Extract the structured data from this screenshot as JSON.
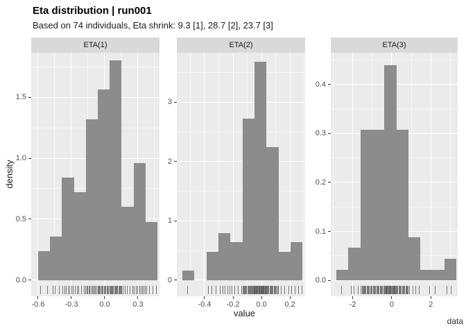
{
  "colors": {
    "bar": "#8c8c8c",
    "panel_bg": "#ebebeb",
    "strip_bg": "#d9d9d9",
    "grid_major": "#ffffff",
    "grid_minor": "rgba(255,255,255,0.55)",
    "axis_text": "#4d4d4d",
    "tick_mark": "#333333",
    "rug": "rgba(26,26,26,0.55)"
  },
  "chart_data": {
    "type": "histogram-facets",
    "title": "Eta distribution | run001",
    "subtitle": "Based on 74 individuals, Eta shrink: 9.3 [1], 28.7 [2], 23.7 [3]",
    "n_individuals": 74,
    "eta_shrink": {
      "eta1": 9.3,
      "eta2": 28.7,
      "eta3": 23.7
    },
    "xlabel": "value",
    "ylabel": "density",
    "caption": "data",
    "grid": true,
    "facets": [
      {
        "label": "ETA(1)",
        "bin_start": -0.6,
        "bin_width": 0.1075,
        "counts": [
          2,
          3,
          7,
          6,
          11,
          13,
          15,
          5,
          8,
          4
        ],
        "densities": [
          0.24,
          0.36,
          0.84,
          0.72,
          1.32,
          1.56,
          1.8,
          0.6,
          0.96,
          0.48
        ],
        "xlim": [
          -0.6625,
          0.494
        ],
        "ylim": [
          -0.131,
          1.864
        ],
        "x_ticks": [
          {
            "v": -0.6,
            "label": "-0.6"
          },
          {
            "v": -0.3,
            "label": "-0.3"
          },
          {
            "v": 0.0,
            "label": "0.0"
          },
          {
            "v": 0.3,
            "label": "0.3"
          }
        ],
        "y_ticks": [
          {
            "v": 0.0,
            "label": "0.0"
          },
          {
            "v": 0.5,
            "label": "0.5"
          },
          {
            "v": 1.0,
            "label": "1.0"
          },
          {
            "v": 1.5,
            "label": "1.5"
          }
        ],
        "rug": [
          -0.58,
          -0.52,
          -0.47,
          -0.45,
          -0.41,
          -0.38,
          -0.365,
          -0.35,
          -0.33,
          -0.32,
          -0.3,
          -0.285,
          -0.27,
          -0.25,
          -0.235,
          -0.21,
          -0.19,
          -0.175,
          -0.165,
          -0.155,
          -0.145,
          -0.135,
          -0.125,
          -0.115,
          -0.105,
          -0.095,
          -0.085,
          -0.075,
          -0.065,
          -0.058,
          -0.05,
          -0.042,
          -0.033,
          -0.025,
          -0.017,
          -0.008,
          0.0,
          0.008,
          0.017,
          0.025,
          0.033,
          0.042,
          0.048,
          0.055,
          0.063,
          0.07,
          0.078,
          0.085,
          0.093,
          0.1,
          0.108,
          0.115,
          0.123,
          0.13,
          0.138,
          0.145,
          0.15,
          0.16,
          0.18,
          0.2,
          0.225,
          0.25,
          0.265,
          0.28,
          0.295,
          0.31,
          0.325,
          0.34,
          0.35,
          0.36,
          0.375,
          0.4,
          0.43,
          0.46
        ]
      },
      {
        "label": "ETA(2)",
        "bin_start": -0.556,
        "bin_width": 0.0845,
        "counts": [
          1,
          0,
          3,
          5,
          4,
          17,
          23,
          14,
          3,
          4
        ],
        "densities": [
          0.16,
          0,
          0.48,
          0.8,
          0.64,
          2.72,
          3.68,
          2.24,
          0.48,
          0.64
        ],
        "xlim": [
          -0.595,
          0.307
        ],
        "ylim": [
          -0.269,
          3.832
        ],
        "x_ticks": [
          {
            "v": -0.4,
            "label": "-0.4"
          },
          {
            "v": -0.2,
            "label": "-0.2"
          },
          {
            "v": 0.0,
            "label": "0.0"
          },
          {
            "v": 0.2,
            "label": "0.2"
          }
        ],
        "y_ticks": [
          {
            "v": 0,
            "label": "0"
          },
          {
            "v": 1,
            "label": "1"
          },
          {
            "v": 2,
            "label": "2"
          },
          {
            "v": 3,
            "label": "3"
          }
        ],
        "rug": [
          -0.52,
          -0.375,
          -0.35,
          -0.32,
          -0.295,
          -0.275,
          -0.26,
          -0.24,
          -0.225,
          -0.21,
          -0.19,
          -0.165,
          -0.14,
          -0.13,
          -0.125,
          -0.12,
          -0.115,
          -0.11,
          -0.105,
          -0.1,
          -0.095,
          -0.09,
          -0.085,
          -0.08,
          -0.075,
          -0.07,
          -0.065,
          -0.06,
          -0.055,
          -0.05,
          -0.047,
          -0.043,
          -0.04,
          -0.036,
          -0.032,
          -0.028,
          -0.025,
          -0.021,
          -0.017,
          -0.013,
          -0.01,
          -0.006,
          -0.002,
          0.001,
          0.005,
          0.009,
          0.012,
          0.016,
          0.02,
          0.024,
          0.027,
          0.031,
          0.034,
          0.038,
          0.044,
          0.05,
          0.056,
          0.062,
          0.068,
          0.074,
          0.08,
          0.086,
          0.092,
          0.098,
          0.104,
          0.11,
          0.116,
          0.135,
          0.16,
          0.19,
          0.21,
          0.235,
          0.26,
          0.285
        ]
      },
      {
        "label": "ETA(3)",
        "bin_start": -2.84,
        "bin_width": 0.615,
        "counts": [
          1,
          3,
          14,
          14,
          20,
          14,
          4,
          1,
          1,
          2
        ],
        "densities": [
          0.022,
          0.066,
          0.308,
          0.308,
          0.44,
          0.308,
          0.088,
          0.022,
          0.022,
          0.044
        ],
        "xlim": [
          -3.12,
          3.37
        ],
        "ylim": [
          -0.0326,
          0.4652
        ],
        "x_ticks": [
          {
            "v": -2,
            "label": "-2"
          },
          {
            "v": 0,
            "label": "0"
          },
          {
            "v": 2,
            "label": "2"
          }
        ],
        "y_ticks": [
          {
            "v": 0.0,
            "label": "0.0"
          },
          {
            "v": 0.1,
            "label": "0.1"
          },
          {
            "v": 0.2,
            "label": "0.2"
          },
          {
            "v": 0.3,
            "label": "0.3"
          },
          {
            "v": 0.4,
            "label": "0.4"
          }
        ],
        "rug": [
          -2.6,
          -2.1,
          -1.95,
          -1.75,
          -1.58,
          -1.53,
          -1.49,
          -1.45,
          -1.41,
          -1.37,
          -1.33,
          -1.28,
          -1.24,
          -1.2,
          -1.16,
          -1.11,
          -1.07,
          -1.02,
          -0.97,
          -0.92,
          -0.88,
          -0.84,
          -0.79,
          -0.75,
          -0.7,
          -0.66,
          -0.61,
          -0.57,
          -0.52,
          -0.48,
          -0.44,
          -0.4,
          -0.36,
          -0.33,
          -0.3,
          -0.27,
          -0.24,
          -0.21,
          -0.18,
          -0.15,
          -0.12,
          -0.09,
          -0.06,
          -0.03,
          0.0,
          0.03,
          0.06,
          0.09,
          0.12,
          0.15,
          0.19,
          0.22,
          0.25,
          0.29,
          0.34,
          0.38,
          0.43,
          0.47,
          0.52,
          0.56,
          0.61,
          0.65,
          0.7,
          0.74,
          0.79,
          0.83,
          0.9,
          1.05,
          1.2,
          1.4,
          1.9,
          2.2,
          2.8,
          3.0
        ]
      }
    ]
  }
}
